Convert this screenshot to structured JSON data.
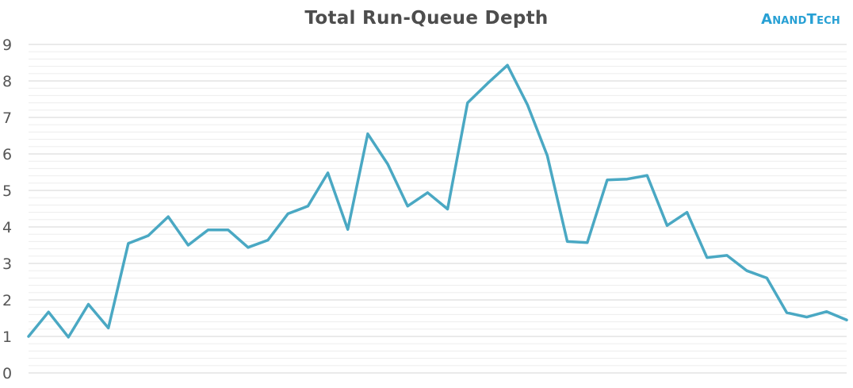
{
  "logo_text": "AnandTech",
  "chart_data": {
    "type": "line",
    "title": "Total Run-Queue Depth",
    "xlabel": "",
    "ylabel": "",
    "ylim": [
      0,
      9
    ],
    "yticks": [
      "0",
      "1",
      "2",
      "3",
      "4",
      "5",
      "6",
      "7",
      "8",
      "9"
    ],
    "grid": true,
    "series": [
      {
        "color": "#4aa8c3",
        "values": [
          1.0,
          1.67,
          0.98,
          1.88,
          1.23,
          3.55,
          3.76,
          4.28,
          3.5,
          3.92,
          3.92,
          3.44,
          3.64,
          4.36,
          4.57,
          5.48,
          3.93,
          6.55,
          5.72,
          4.57,
          4.94,
          4.49,
          7.4,
          7.93,
          8.43,
          7.35,
          5.95,
          3.6,
          3.57,
          5.29,
          5.31,
          5.41,
          4.04,
          4.4,
          3.16,
          3.22,
          2.8,
          2.6,
          1.65,
          1.53,
          1.68,
          1.45
        ]
      }
    ]
  }
}
